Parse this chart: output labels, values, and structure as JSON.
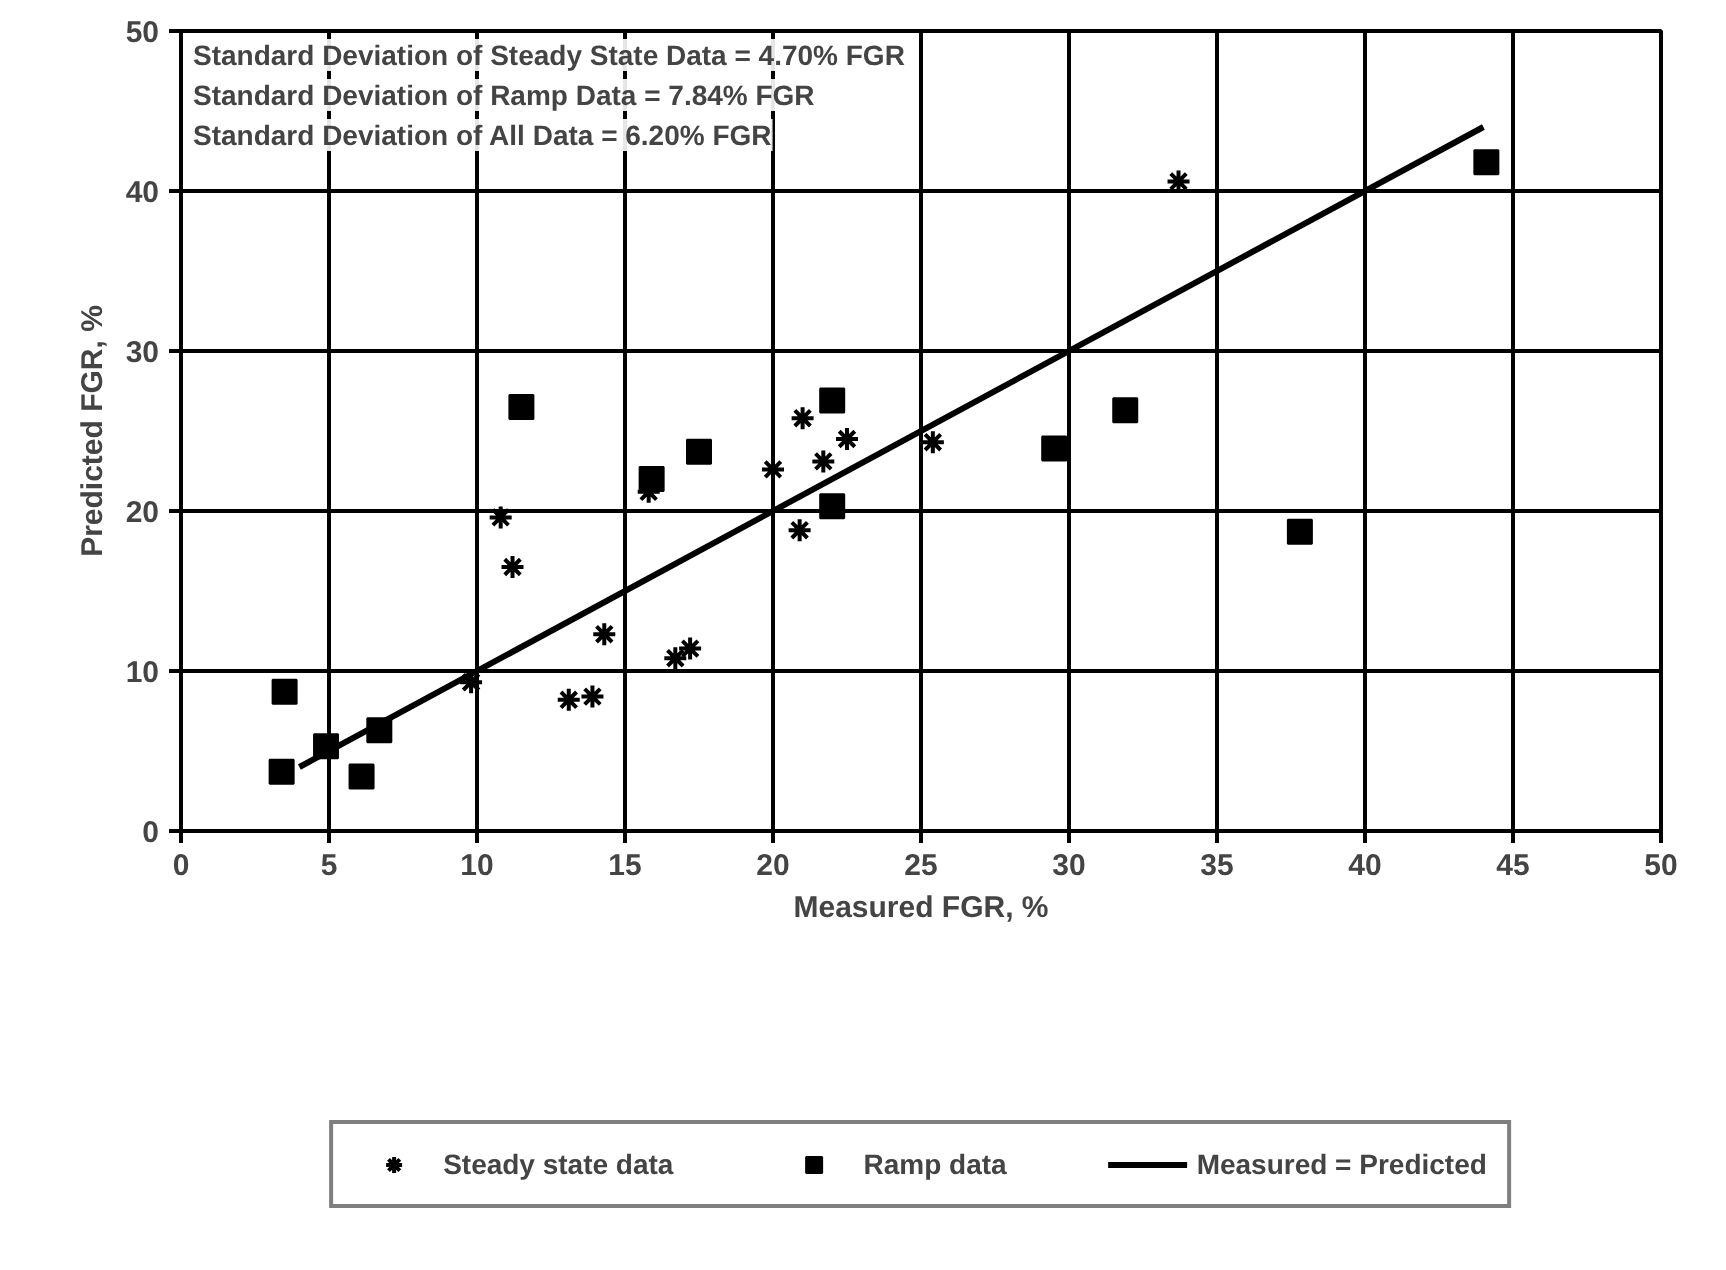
{
  "chart_data": {
    "type": "scatter",
    "xlabel": "Measured FGR, %",
    "ylabel": "Predicted FGR, %",
    "annotations": [
      "Standard Deviation of Steady State Data = 4.70% FGR",
      "Standard Deviation of Ramp Data = 7.84% FGR",
      "Standard Deviation of All Data = 6.20% FGR"
    ],
    "series": [
      {
        "name": "Steady state data",
        "color": "#000000",
        "marker": "cross",
        "x": [
          10.8,
          11.2,
          9.8,
          14.3,
          13.1,
          13.9,
          16.7,
          17.2,
          15.8,
          21.0,
          22.5,
          21.7,
          20.0,
          20.9,
          25.4,
          33.7
        ],
        "values": [
          19.6,
          16.5,
          9.3,
          12.3,
          8.2,
          8.4,
          10.8,
          11.4,
          21.2,
          25.8,
          24.5,
          23.1,
          22.6,
          18.8,
          24.3,
          40.6
        ]
      },
      {
        "name": "Ramp data",
        "color": "#000000",
        "marker": "square",
        "x": [
          3.5,
          3.4,
          4.9,
          6.7,
          6.1,
          11.5,
          15.9,
          17.5,
          22.0,
          22.0,
          29.5,
          31.9,
          37.8,
          44.1
        ],
        "values": [
          8.7,
          3.7,
          5.3,
          6.3,
          3.4,
          26.5,
          22.0,
          23.7,
          26.9,
          20.3,
          23.9,
          26.3,
          18.7,
          41.8
        ]
      },
      {
        "name": "Measured = Predicted",
        "type": "line",
        "color": "#000000",
        "marker": "none",
        "x": [
          4,
          44
        ],
        "values": [
          4,
          44
        ]
      }
    ],
    "xlim": [
      0,
      50
    ],
    "xticks": [
      0,
      5,
      10,
      15,
      20,
      25,
      30,
      35,
      40,
      45,
      50
    ],
    "ylim": [
      0,
      50
    ],
    "yticks": [
      0,
      10,
      20,
      30,
      40,
      50
    ],
    "grid": true,
    "legend": "bottom"
  }
}
